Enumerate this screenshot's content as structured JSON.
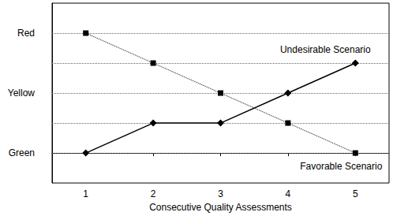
{
  "chart_data": {
    "type": "line",
    "x_label": "Consecutive Quality Assessments",
    "x": [
      1,
      2,
      3,
      4,
      5
    ],
    "series": [
      {
        "name": "Undesirable Scenario",
        "color": "#000000",
        "marker": "diamond",
        "line_style": "solid",
        "values": [
          0,
          1,
          1,
          2,
          3
        ]
      },
      {
        "name": "Favorable Scenario",
        "color": "#000000",
        "marker": "square",
        "line_style": "dotted",
        "values": [
          4,
          3,
          2,
          1,
          0
        ]
      }
    ],
    "xlim": [
      0.5,
      5.5
    ],
    "xticks": [
      1,
      2,
      3,
      4,
      5
    ],
    "ylim": [
      -1,
      5
    ],
    "yticks": [
      {
        "value": 0,
        "label": "Green"
      },
      {
        "value": 2,
        "label": "Yellow"
      },
      {
        "value": 4,
        "label": "Red"
      }
    ],
    "grid": true
  }
}
